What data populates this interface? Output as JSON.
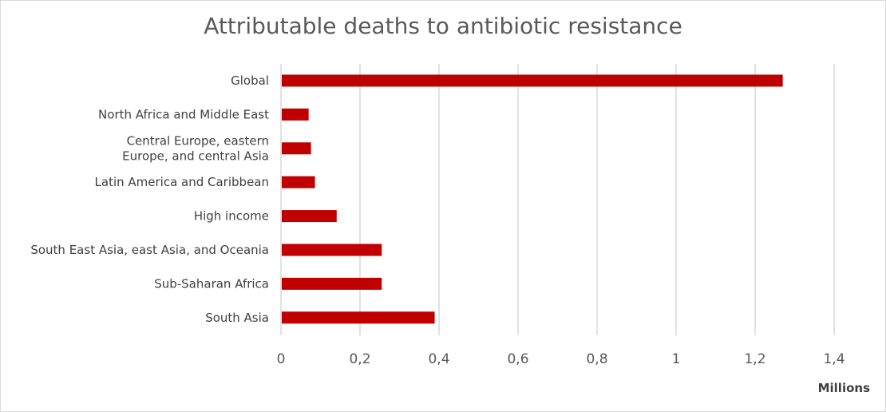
{
  "chart_data": {
    "type": "bar",
    "orientation": "horizontal",
    "title": "Attributable deaths to antibiotic resistance",
    "xlabel": "",
    "ylabel": "",
    "unit_label": "Millions",
    "categories": [
      "Global",
      "North Africa and Middle East",
      "Central Europe, eastern Europe, and central Asia",
      "Latin America and Caribbean",
      "High income",
      "South East Asia, east Asia, and Oceania",
      "Sub-Saharan Africa",
      "South Asia"
    ],
    "category_lines": [
      [
        "Global"
      ],
      [
        "North Africa and Middle East"
      ],
      [
        "Central Europe, eastern",
        "Europe, and central Asia"
      ],
      [
        "Latin America and Caribbean"
      ],
      [
        "High income"
      ],
      [
        "South East Asia, east Asia, and Oceania"
      ],
      [
        "Sub-Saharan Africa"
      ],
      [
        "South Asia"
      ]
    ],
    "values": [
      1.27,
      0.07,
      0.076,
      0.086,
      0.141,
      0.255,
      0.255,
      0.389
    ],
    "xlim": [
      0,
      1.4
    ],
    "ticks": [
      0,
      0.2,
      0.4,
      0.6,
      0.8,
      1,
      1.2,
      1.4
    ],
    "tick_labels": [
      "0",
      "0,2",
      "0,4",
      "0,6",
      "0,8",
      "1",
      "1,2",
      "1,4"
    ],
    "grid": true,
    "legend": "none",
    "bar_color": "#c00000"
  }
}
